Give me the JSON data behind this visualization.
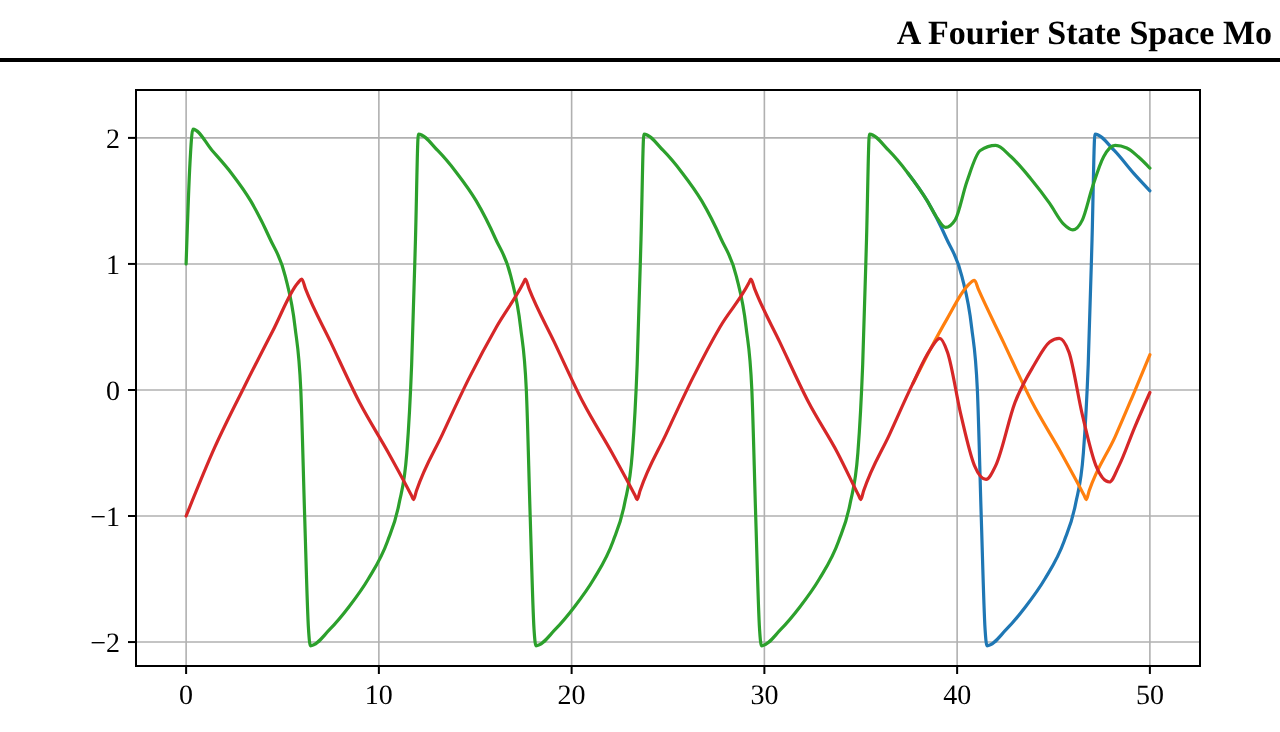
{
  "chart_data": {
    "type": "line",
    "title": "A Fourier State Space Mo",
    "xlim": [
      -2.6,
      52.6
    ],
    "ylim": [
      -2.19,
      2.38
    ],
    "xticks": [
      0,
      10,
      20,
      30,
      40,
      50
    ],
    "yticks": [
      {
        "value": -2,
        "label": "−2"
      },
      {
        "value": -1,
        "label": "−1"
      },
      0,
      1,
      2
    ],
    "grid": true,
    "marker": "none",
    "line_style": "solid",
    "series": [
      {
        "color": "#1f77b4",
        "x": [
          37.45,
          38.45,
          39.45,
          40.25,
          40.75,
          41.05,
          41.25,
          41.45,
          41.55,
          42.55,
          43.55,
          44.55,
          45.55,
          46.15,
          46.55,
          46.8,
          47.0,
          47.15,
          48.15,
          49.15,
          50
        ],
        "values": [
          1.72,
          1.5,
          1.2,
          0.9,
          0.5,
          0,
          -1,
          -1.9,
          -2.03,
          -1.9,
          -1.72,
          -1.5,
          -1.2,
          -0.9,
          -0.5,
          0.2,
          1.2,
          2.03,
          1.9,
          1.72,
          1.58
        ]
      },
      {
        "color": "#ff7f0e",
        "x": [
          37.7,
          38.6,
          39.5,
          40.5,
          40.9,
          41.1,
          42.4,
          43.9,
          45.4,
          46.6,
          46.7,
          46.85,
          48.2,
          49.1,
          50
        ],
        "values": [
          0.05,
          0.32,
          0.57,
          0.82,
          0.87,
          0.8,
          0.38,
          -0.1,
          -0.5,
          -0.84,
          -0.87,
          -0.8,
          -0.37,
          -0.05,
          0.28
        ]
      },
      {
        "color": "#2ca02c",
        "x": [
          0,
          0.2,
          0.35,
          1.35,
          2.35,
          3.35,
          4.35,
          5.15,
          5.65,
          5.95,
          6.15,
          6.35,
          6.45,
          7.45,
          8.45,
          9.45,
          10.45,
          11.05,
          11.45,
          11.7,
          11.9,
          12.05,
          13.05,
          14.05,
          15.05,
          16.05,
          16.85,
          17.35,
          17.65,
          17.85,
          18.05,
          18.15,
          19.15,
          20.15,
          21.15,
          22.15,
          22.75,
          23.15,
          23.4,
          23.6,
          23.75,
          24.75,
          25.75,
          26.75,
          27.75,
          28.55,
          29.05,
          29.35,
          29.55,
          29.75,
          29.85,
          30.85,
          31.85,
          32.85,
          33.85,
          34.45,
          34.85,
          35.1,
          35.3,
          35.45,
          36.45,
          37.45,
          38.45,
          38.9,
          39.4,
          39.9,
          40.5,
          41.2,
          42.0,
          42.8,
          43.8,
          44.8,
          45.5,
          46.0,
          46.5,
          47.0,
          47.6,
          48.2,
          48.8,
          49.4,
          50
        ],
        "values": [
          1.0,
          1.8,
          2.07,
          1.9,
          1.72,
          1.5,
          1.2,
          0.9,
          0.5,
          0,
          -1,
          -1.9,
          -2.03,
          -1.9,
          -1.72,
          -1.5,
          -1.2,
          -0.9,
          -0.5,
          0.2,
          1.2,
          2.03,
          1.9,
          1.72,
          1.5,
          1.2,
          0.9,
          0.5,
          0,
          -1,
          -1.9,
          -2.03,
          -1.9,
          -1.72,
          -1.5,
          -1.2,
          -0.9,
          -0.5,
          0.2,
          1.2,
          2.03,
          1.9,
          1.72,
          1.5,
          1.2,
          0.9,
          0.5,
          0,
          -1,
          -1.9,
          -2.03,
          -1.9,
          -1.72,
          -1.5,
          -1.2,
          -0.9,
          -0.5,
          0.2,
          1.2,
          2.03,
          1.9,
          1.72,
          1.5,
          1.38,
          1.29,
          1.35,
          1.65,
          1.9,
          1.94,
          1.85,
          1.68,
          1.48,
          1.32,
          1.27,
          1.35,
          1.6,
          1.85,
          1.94,
          1.92,
          1.85,
          1.76
        ]
      },
      {
        "color": "#d62728",
        "x": [
          0,
          1.5,
          3,
          4.5,
          5.8,
          6.0,
          6.2,
          7.5,
          9,
          10.5,
          11.7,
          11.8,
          11.95,
          13.3,
          14.7,
          16.1,
          17.5,
          17.6,
          17.8,
          19.1,
          20.6,
          22.1,
          23.3,
          23.4,
          23.55,
          24.9,
          26.3,
          27.7,
          29.2,
          29.3,
          29.5,
          30.8,
          32.3,
          33.8,
          34.9,
          35.0,
          35.15,
          36.5,
          37.7,
          38.6,
          39.1,
          39.5,
          40.2,
          40.9,
          41.5,
          42.0,
          43.0,
          44.0,
          44.8,
          45.3,
          45.8,
          46.5,
          47.2,
          47.9,
          48.4,
          49.2,
          50
        ],
        "values": [
          -1,
          -0.45,
          0.02,
          0.47,
          0.85,
          0.88,
          0.8,
          0.38,
          -0.1,
          -0.5,
          -0.84,
          -0.87,
          -0.8,
          -0.35,
          0.1,
          0.5,
          0.85,
          0.88,
          0.8,
          0.38,
          -0.1,
          -0.5,
          -0.84,
          -0.87,
          -0.8,
          -0.35,
          0.1,
          0.5,
          0.85,
          0.88,
          0.8,
          0.38,
          -0.1,
          -0.5,
          -0.84,
          -0.87,
          -0.8,
          -0.35,
          0.05,
          0.32,
          0.41,
          0.3,
          -0.2,
          -0.6,
          -0.71,
          -0.6,
          -0.1,
          0.2,
          0.38,
          0.41,
          0.3,
          -0.2,
          -0.6,
          -0.73,
          -0.6,
          -0.3,
          -0.02
        ]
      }
    ]
  }
}
